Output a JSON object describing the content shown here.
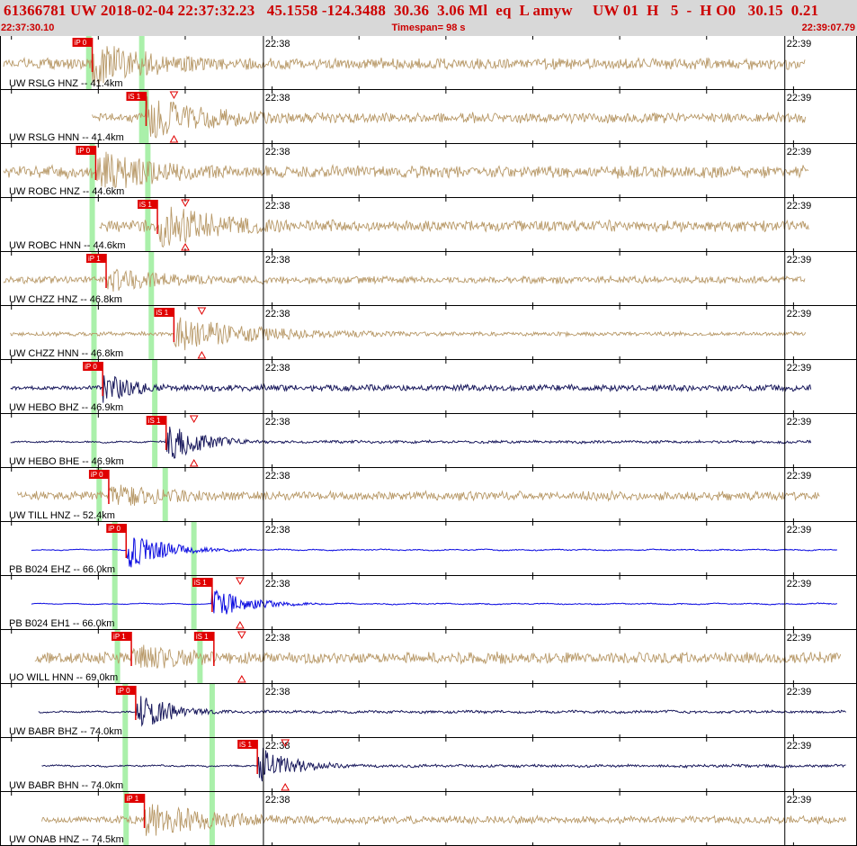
{
  "header": {
    "line1": "61366781 UW 2018-02-04 22:37:32.23   45.1558 -124.3488  30.36  3.06 Ml  eq  L amyw     UW 01  H   5  -  H O0   30.15  0.21",
    "start_time": "22:37:30.10",
    "timespan": "Timespan=  98 s",
    "end_time": "22:39:07.79"
  },
  "colors": {
    "tan": "#b89968",
    "navy": "#1b1b5e",
    "blue": "#0a0ae0",
    "pick": "#e00000",
    "green": "#aaf0aa",
    "header_bg": "#d8d8d8"
  },
  "chart_data": {
    "type": "line",
    "title": "",
    "xlim": [
      0,
      98
    ],
    "time_ticks": [
      {
        "t": 29.9,
        "label": "22:38"
      },
      {
        "t": 89.9,
        "label": "22:39"
      }
    ],
    "traces": [
      {
        "label": "UW RSLG HNZ -- 41.4km",
        "color": "tan",
        "t0": 0,
        "t1": 92.3,
        "amp": 0.28,
        "peak": 0.95,
        "onset": 10.2,
        "mode": "ew",
        "picks": [
          {
            "text": "iP 0",
            "t": 10.2
          }
        ],
        "green": [
          9.8,
          15.9
        ]
      },
      {
        "label": "UW RSLG HNN -- 41.4km",
        "color": "tan",
        "t0": 10.2,
        "t1": 92.3,
        "amp": 0.25,
        "peak": 0.9,
        "onset": 16.4,
        "mode": "ew",
        "picks": [
          {
            "text": "iS 1",
            "t": 16.4,
            "tri": true
          }
        ],
        "green": [
          15.9,
          16.4
        ]
      },
      {
        "label": "UW ROBC HNZ -- 44.6km",
        "color": "tan",
        "t0": 0,
        "t1": 92.7,
        "amp": 0.3,
        "peak": 0.95,
        "onset": 10.6,
        "mode": "ew",
        "picks": [
          {
            "text": "iP 0",
            "t": 10.6
          }
        ],
        "green": [
          10.2,
          16.6
        ]
      },
      {
        "label": "UW ROBC HNN -- 44.6km",
        "color": "tan",
        "t0": 11.0,
        "t1": 92.7,
        "amp": 0.27,
        "peak": 0.95,
        "onset": 17.7,
        "mode": "ew",
        "picks": [
          {
            "text": "iS 1",
            "t": 17.7,
            "tri": true
          }
        ],
        "green": [
          10.2,
          16.6
        ]
      },
      {
        "label": "UW CHZZ HNZ -- 46.8km",
        "color": "tan",
        "t0": 0,
        "t1": 92.3,
        "amp": 0.18,
        "peak": 0.5,
        "onset": 11.8,
        "mode": "ew",
        "picks": [
          {
            "text": "iP 1",
            "t": 11.8
          }
        ],
        "green": [
          10.4,
          17.0
        ]
      },
      {
        "label": "UW CHZZ HNN -- 46.8km",
        "color": "tan",
        "t0": 0.8,
        "t1": 92.3,
        "amp": 0.1,
        "peak": 0.75,
        "onset": 19.6,
        "mode": "ew",
        "picks": [
          {
            "text": "iS 1",
            "t": 19.6,
            "tri": true
          }
        ],
        "green": [
          10.4,
          17.0
        ]
      },
      {
        "label": "UW HEBO BHZ -- 46.9km",
        "color": "navy",
        "t0": 0.8,
        "t1": 93.0,
        "amp": 0.12,
        "peak": 0.7,
        "onset": 11.4,
        "mode": "line",
        "picks": [
          {
            "text": "iP 0",
            "t": 11.4
          }
        ],
        "green": [
          10.4,
          17.4
        ]
      },
      {
        "label": "UW HEBO BHE -- 46.9km",
        "color": "navy",
        "t0": 0.8,
        "t1": 93.0,
        "amp": 0.05,
        "peak": 0.95,
        "onset": 18.7,
        "mode": "line",
        "picks": [
          {
            "text": "iS 1",
            "t": 18.7,
            "tri": true
          }
        ],
        "green": [
          10.4,
          17.4
        ]
      },
      {
        "label": "UW TILL HNZ -- 52.4km",
        "color": "tan",
        "t0": 1.6,
        "t1": 94.0,
        "amp": 0.22,
        "peak": 0.5,
        "onset": 12.1,
        "mode": "ew",
        "picks": [
          {
            "text": "iP 0",
            "t": 12.1
          }
        ],
        "green": [
          11.0,
          18.6
        ]
      },
      {
        "label": "PB B024 EHZ -- 66.0km",
        "color": "blue",
        "t0": 3.2,
        "t1": 96.0,
        "amp": 0.02,
        "peak": 0.9,
        "onset": 14.1,
        "mode": "line",
        "picks": [
          {
            "text": "iP 0",
            "t": 14.1
          }
        ],
        "green": [
          12.8,
          21.9
        ]
      },
      {
        "label": "PB B024 EH1 -- 66.0km",
        "color": "blue",
        "t0": 3.2,
        "t1": 96.0,
        "amp": 0.02,
        "peak": 0.7,
        "onset": 24.0,
        "mode": "line",
        "picks": [
          {
            "text": "iS 1",
            "t": 24.0,
            "tri": true
          }
        ],
        "green": [
          12.8,
          21.9
        ]
      },
      {
        "label": "UO WILL HNN -- 69.0km",
        "color": "tan",
        "t0": 3.6,
        "t1": 96.4,
        "amp": 0.28,
        "peak": 0.6,
        "onset": 14.7,
        "mode": "ew",
        "picks": [
          {
            "text": "iP 1",
            "t": 14.7
          },
          {
            "text": "iS 1",
            "t": 24.2,
            "tri": true
          }
        ],
        "green": [
          13.1,
          22.6
        ]
      },
      {
        "label": "UW BABR BHZ -- 74.0km",
        "color": "navy",
        "t0": 4.0,
        "t1": 97.0,
        "amp": 0.05,
        "peak": 0.9,
        "onset": 15.2,
        "mode": "line",
        "picks": [
          {
            "text": "iP 0",
            "t": 15.2
          }
        ],
        "green": [
          14.0,
          24.0
        ]
      },
      {
        "label": "UW BABR BHN -- 74.0km",
        "color": "navy",
        "t0": 4.4,
        "t1": 97.0,
        "amp": 0.05,
        "peak": 0.9,
        "onset": 29.2,
        "mode": "line",
        "picks": [
          {
            "text": "iS 1",
            "t": 29.2,
            "tri": true
          }
        ],
        "green": [
          14.0,
          24.0
        ]
      },
      {
        "label": "UW ONAB HNZ -- 74.5km",
        "color": "tan",
        "t0": 4.4,
        "t1": 97.0,
        "amp": 0.18,
        "peak": 0.75,
        "onset": 16.2,
        "mode": "ew",
        "picks": [
          {
            "text": "iP 1",
            "t": 16.2
          }
        ],
        "green": [
          14.1,
          24.0
        ]
      }
    ]
  }
}
